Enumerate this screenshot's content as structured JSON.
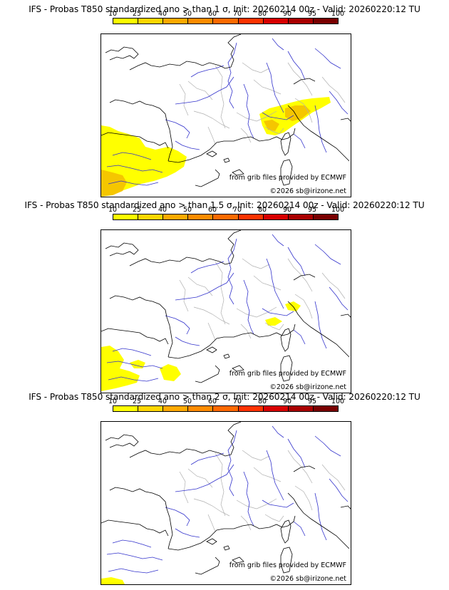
{
  "panels": [
    {
      "title": "IFS - Probas T850  standardized ano > than 1 σ, Init: 20260214 00z - Valid: 20260220:12 TU",
      "sigma": "1"
    },
    {
      "title": "IFS - Probas T850  standardized ano > than 1.5 σ, Init: 20260214 00z - Valid: 20260220:12 TU",
      "sigma": "1.5"
    },
    {
      "title": "IFS - Probas T850  standardized ano > than 2 σ, Init: 20260214 00z - Valid: 20260220:12 TU",
      "sigma": "2"
    }
  ],
  "colorbar": {
    "ticks": [
      "10",
      "25",
      "40",
      "50",
      "60",
      "70",
      "80",
      "90",
      "95",
      "100"
    ],
    "colors": [
      "#ffff00",
      "#ffd700",
      "#ffaa00",
      "#ff8c00",
      "#ff6a00",
      "#ff3300",
      "#d90000",
      "#aa0000",
      "#7a0000"
    ]
  },
  "credits": {
    "ecmwf": "from grib files provided by ECMWF",
    "copyright": "©2026 sb@irizone.net"
  },
  "colors": {
    "coast": "#000000",
    "rivers": "#3333cc",
    "borders": "#b0b0b0",
    "prob_low": "#ffff00",
    "prob_mid": "#f5c600",
    "prob_high": "#f0a000"
  }
}
